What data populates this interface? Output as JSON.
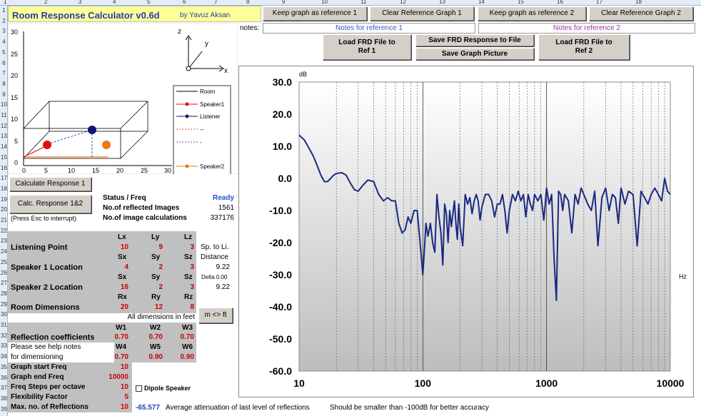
{
  "col_headers": [
    "1",
    "2",
    "3",
    "4",
    "5",
    "6",
    "7",
    "8",
    "9",
    "10",
    "11",
    "12",
    "13",
    "14",
    "15",
    "16",
    "17",
    "18"
  ],
  "row_headers": [
    "1",
    "2",
    "3",
    "4",
    "5",
    "6",
    "7",
    "8",
    "9",
    "10",
    "11",
    "12",
    "13",
    "14",
    "15",
    "16",
    "17",
    "18",
    "19",
    "20",
    "21",
    "22",
    "23",
    "24",
    "25",
    "26",
    "27",
    "28",
    "29",
    "30",
    "31",
    "32",
    "33",
    "34",
    "35",
    "36",
    "37",
    "38",
    "39"
  ],
  "app": {
    "title": "Room Response Calculator  v0.6d",
    "author": "by Yavuz Aksan"
  },
  "top_buttons": {
    "keep_ref1": "Keep graph as reference 1",
    "clear_ref1": "Clear Reference Graph 1",
    "keep_ref2": "Keep graph as reference 2",
    "clear_ref2": "Clear Reference Graph 2"
  },
  "notes": {
    "label": "notes:",
    "ref1": "Notes for reference 1",
    "ref2": "Notes for reference 2"
  },
  "file_buttons": {
    "load_ref1": "Load FRD File to Ref 1",
    "save_frd": "Save FRD Response to File",
    "save_pic": "Save Graph Picture",
    "load_ref2": "Load FRD File to Ref 2"
  },
  "room_plot": {
    "y_ticks": [
      "30",
      "25",
      "20",
      "15",
      "10",
      "5",
      "0"
    ],
    "x_ticks": [
      "0",
      "5",
      "10",
      "15",
      "20",
      "25",
      "30"
    ],
    "axis_z": "z",
    "axis_y": "y",
    "axis_x": "x",
    "legend": [
      "Room",
      "Speaker1",
      "Listener",
      "--",
      "-",
      "Speaker2",
      "--"
    ],
    "colors": {
      "speaker1": "#dd1111",
      "listener": "#111177",
      "speaker2": "#ee7711"
    }
  },
  "controls": {
    "calc_btn": "Calculate Response 1",
    "calc12_btn": "Calc. Response 1&2",
    "esc_note": "(Press Esc to interrupt)",
    "status_label": "Status / Freq",
    "status_value": "Ready",
    "reflected_label": "No.of reflected Images",
    "reflected_value": "1561",
    "calcs_label": "No.of image calculations",
    "calcs_value": "337176"
  },
  "params": {
    "hdr_lx": "Lx",
    "hdr_ly": "Ly",
    "hdr_lz": "Lz",
    "listening": {
      "label": "Listening Point",
      "x": "10",
      "y": "9",
      "z": "3"
    },
    "hdr_sx": "Sx",
    "hdr_sy": "Sy",
    "hdr_sz": "Sz",
    "sp_to_li": "Sp. to Li.",
    "distance": "Distance",
    "speaker1": {
      "label": "Speaker 1 Location",
      "x": "4",
      "y": "2",
      "z": "3",
      "dist": "9.22"
    },
    "delta": "Delta 0.00",
    "speaker2": {
      "label": "Speaker 2 Location",
      "x": "16",
      "y": "2",
      "z": "3",
      "dist": "9.22"
    },
    "hdr_rx": "Rx",
    "hdr_ry": "Ry",
    "hdr_rz": "Rz",
    "room": {
      "label": "Room Dimensions",
      "x": "20",
      "y": "12",
      "z": "8"
    },
    "all_dims": "All dimensions in feet",
    "m_ft_btn": "m <> ft",
    "hdr_w1": "W1",
    "hdr_w2": "W2",
    "hdr_w3": "W3",
    "refl_label": "Reflection coefficients",
    "w1": "0.70",
    "w2": "0.70",
    "w3": "0.70",
    "help1": "Please see help notes",
    "help2": "for dimensioning",
    "hdr_w4": "W4",
    "hdr_w5": "W5",
    "hdr_w6": "W6",
    "w4": "0.70",
    "w5": "0.90",
    "w6": "0.90",
    "graph_start_label": "Graph start Freq",
    "graph_start": "10",
    "graph_end_label": "Graph end Freq",
    "graph_end": "10000",
    "steps_label": "Freq Steps per octave",
    "steps": "10",
    "flex_label": "Flexibility Factor",
    "flex": "5",
    "max_refl_label": "Max. no. of Reflections",
    "max_refl": "10",
    "dipole_label": "Dipole Speaker"
  },
  "footer": {
    "atten_value": "-65.577",
    "atten_text": "Average attenuation of last level of reflections",
    "accuracy_text": "Should be smaller than -100dB for better accuracy"
  },
  "chart_data": {
    "type": "line",
    "ylabel": "dB",
    "xlabel": "Hz",
    "y_ticks": [
      "30.0",
      "20.0",
      "10.0",
      "0.0",
      "-10.0",
      "-20.0",
      "-30.0",
      "-40.0",
      "-50.0",
      "-60.0"
    ],
    "x_ticks": [
      "10",
      "100",
      "1000",
      "10000"
    ],
    "ylim": [
      -60,
      30
    ],
    "xlim": [
      10,
      10000
    ],
    "x_scale": "log",
    "grid": true,
    "series_color": "#1a2a80",
    "series": [
      {
        "name": "",
        "x": [
          10,
          11,
          12,
          13,
          14,
          15,
          16,
          17,
          18,
          19,
          20,
          22,
          24,
          26,
          28,
          30,
          33,
          36,
          40,
          44,
          48,
          52,
          56,
          60,
          64,
          68,
          72,
          76,
          80,
          85,
          90,
          95,
          100,
          103,
          106,
          110,
          115,
          120,
          125,
          130,
          135,
          140,
          145,
          150,
          155,
          160,
          165,
          170,
          175,
          180,
          185,
          190,
          195,
          200,
          210,
          220,
          230,
          240,
          250,
          260,
          270,
          280,
          290,
          300,
          320,
          340,
          360,
          380,
          400,
          420,
          440,
          460,
          480,
          500,
          530,
          560,
          590,
          620,
          650,
          680,
          710,
          740,
          770,
          800,
          850,
          900,
          950,
          1000,
          1050,
          1100,
          1150,
          1200,
          1250,
          1300,
          1350,
          1400,
          1500,
          1600,
          1700,
          1800,
          1900,
          2000,
          2150,
          2300,
          2450,
          2600,
          2800,
          3000,
          3200,
          3400,
          3600,
          3800,
          4000,
          4300,
          4600,
          5000,
          5400,
          5800,
          6200,
          6600,
          7000,
          7500,
          8000,
          8500,
          9000,
          9500,
          10000
        ],
        "y": [
          13.5,
          12,
          9.5,
          7,
          4,
          1,
          -1,
          -1,
          0,
          1,
          1.5,
          1.8,
          1,
          -1.5,
          -3.5,
          -4,
          -2,
          -0.5,
          -1,
          -5,
          -7,
          -6,
          -7,
          -7,
          -14,
          -17,
          -16,
          -12,
          -14,
          -10,
          -10,
          -20,
          -30,
          -22,
          -14,
          -18,
          -14,
          -20,
          -23,
          -5,
          -12,
          -17,
          -27,
          -8,
          -11,
          -20,
          -10,
          -15,
          -11,
          -7,
          -14,
          -19,
          -8,
          -15,
          -21,
          -5,
          -8,
          -6,
          -11,
          -7,
          -5,
          -7,
          -13,
          -9,
          -5,
          -5,
          -7,
          -12,
          -8,
          -8,
          -5,
          -10,
          -17,
          -10,
          -5,
          -7,
          -4,
          -7,
          -5,
          -12,
          -5,
          -8,
          -10,
          -5,
          -7,
          -5,
          -13,
          -3,
          -8,
          -5,
          -25,
          -38,
          -4,
          -5,
          -10,
          -5,
          -7,
          -17,
          -5,
          -8,
          -3,
          -5,
          -8,
          -10,
          -4,
          -21,
          -6,
          -3,
          -10,
          -5,
          -6,
          -14,
          -3,
          -8,
          -4,
          -5,
          -21,
          -4,
          -6,
          -8,
          -5,
          -3,
          -5,
          -7,
          0,
          -4,
          -5
        ]
      }
    ]
  }
}
